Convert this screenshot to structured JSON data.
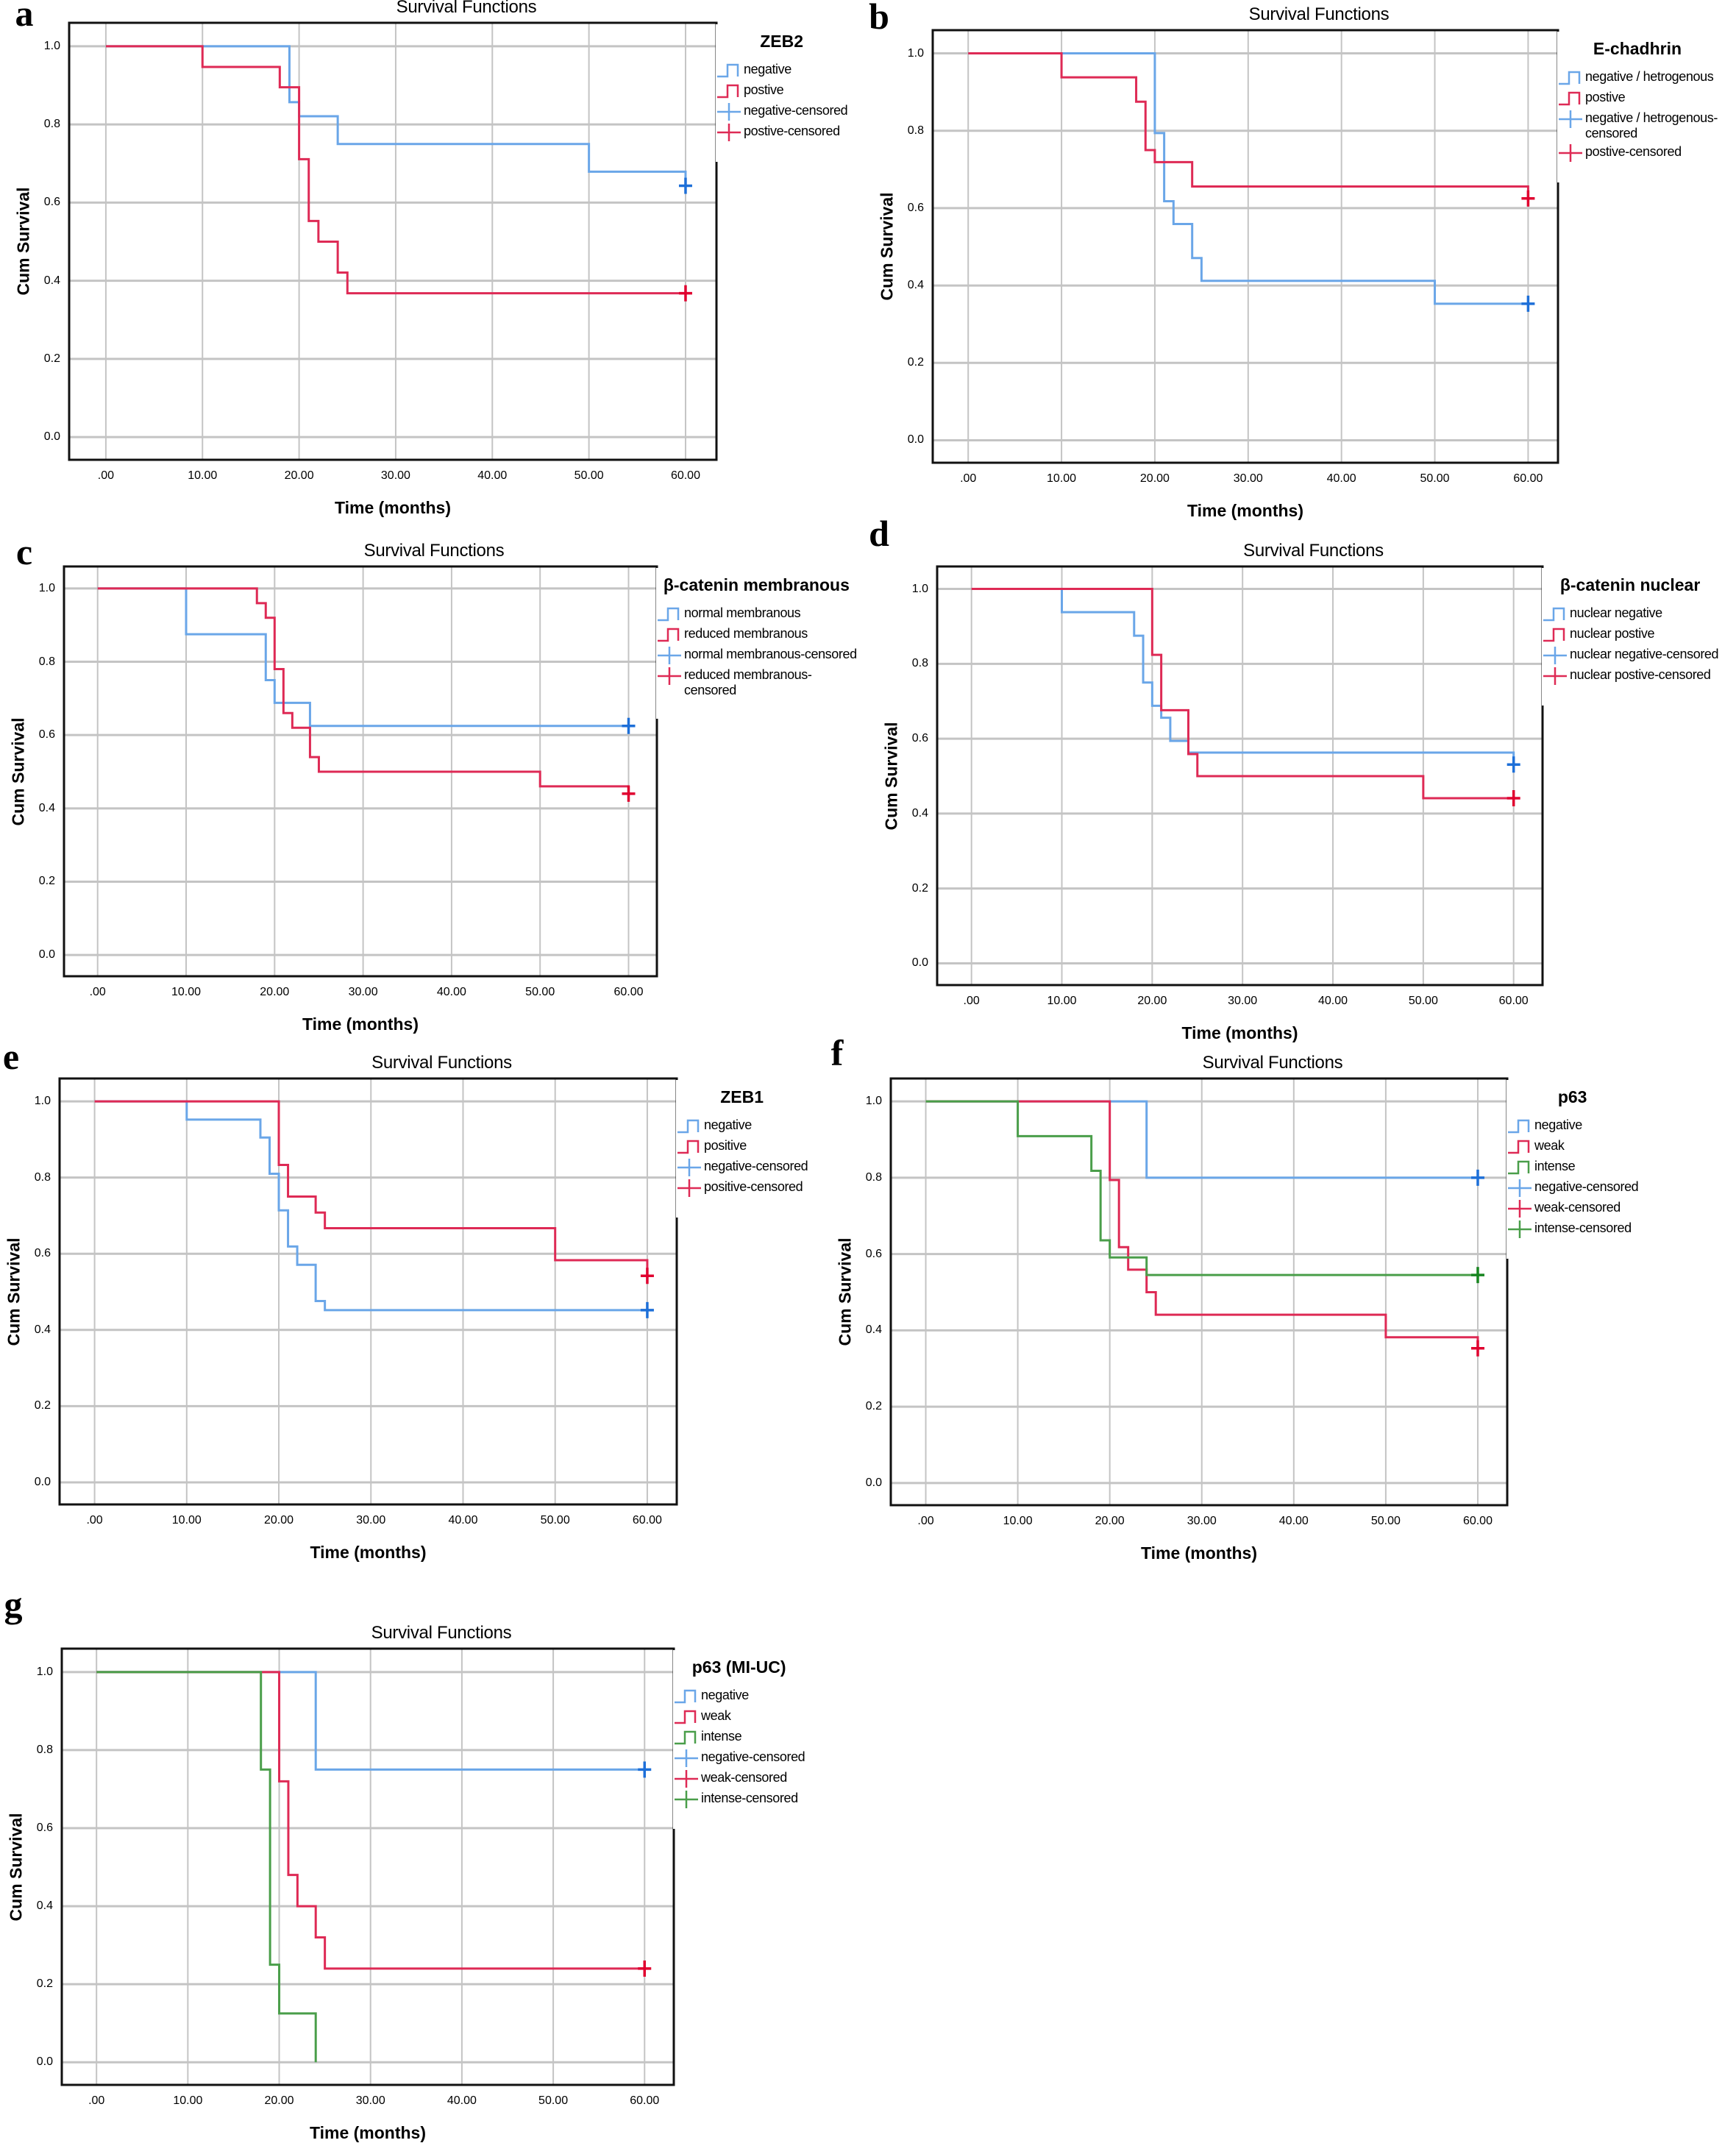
{
  "chart_data": [
    {
      "type": "line",
      "panel": "a",
      "title": "Survival Functions",
      "xlabel": "Time (months)",
      "ylabel": "Cum Survival",
      "xlim": [
        -3.8,
        63.2
      ],
      "ylim": [
        -0.058,
        1.06
      ],
      "grid": true,
      "legend_position": "right",
      "xticks": [
        ".00",
        "10.00",
        "20.00",
        "30.00",
        "40.00",
        "50.00",
        "60.00"
      ],
      "yticks": [
        "0.0",
        "0.2",
        "0.4",
        "0.6",
        "0.8",
        "1.0"
      ],
      "legend_title": "ZEB2",
      "series": [
        {
          "name": "negative",
          "color": "#6aa6e8",
          "censor_color": "#1d6fd8",
          "steps": [
            [
              19,
              0.857
            ],
            [
              20,
              0.821
            ],
            [
              24,
              0.75
            ],
            [
              50,
              0.679
            ],
            [
              60,
              0.643
            ]
          ],
          "end": 60,
          "censored": [
            [
              60,
              0.643
            ]
          ]
        },
        {
          "name": "postive",
          "color": "#de2a55",
          "censor_color": "#e0002f",
          "steps": [
            [
              10,
              0.947
            ],
            [
              18,
              0.895
            ],
            [
              20,
              0.711
            ],
            [
              21,
              0.553
            ],
            [
              22,
              0.5
            ],
            [
              24,
              0.421
            ],
            [
              25,
              0.368
            ]
          ],
          "end": 60,
          "censored": [
            [
              60,
              0.368
            ]
          ]
        }
      ],
      "legend": [
        {
          "label": "negative",
          "color": "#6aa6e8",
          "kind": "line"
        },
        {
          "label": "postive",
          "color": "#de2a55",
          "kind": "line"
        },
        {
          "label": "negative-censored",
          "color": "#6aa6e8",
          "kind": "censored"
        },
        {
          "label": "postive-censored",
          "color": "#de2a55",
          "kind": "censored"
        }
      ]
    },
    {
      "type": "line",
      "panel": "b",
      "title": "Survival Functions",
      "xlabel": "Time (months)",
      "ylabel": "Cum Survival",
      "xlim": [
        -3.8,
        63.2
      ],
      "ylim": [
        -0.058,
        1.06
      ],
      "grid": true,
      "legend_position": "right",
      "xticks": [
        ".00",
        "10.00",
        "20.00",
        "30.00",
        "40.00",
        "50.00",
        "60.00"
      ],
      "yticks": [
        "0.0",
        "0.2",
        "0.4",
        "0.6",
        "0.8",
        "1.0"
      ],
      "legend_title": "E-chadhrin",
      "series": [
        {
          "name": "negative / hetrogenous",
          "color": "#6aa6e8",
          "censor_color": "#1d6fd8",
          "steps": [
            [
              20,
              0.794
            ],
            [
              21,
              0.618
            ],
            [
              22,
              0.559
            ],
            [
              24,
              0.471
            ],
            [
              25,
              0.412
            ],
            [
              50,
              0.353
            ]
          ],
          "end": 60,
          "censored": [
            [
              60,
              0.353
            ]
          ]
        },
        {
          "name": "postive",
          "color": "#de2a55",
          "censor_color": "#e0002f",
          "steps": [
            [
              10,
              0.938
            ],
            [
              18,
              0.875
            ],
            [
              19,
              0.75
            ],
            [
              20,
              0.719
            ],
            [
              24,
              0.656
            ],
            [
              60,
              0.625
            ]
          ],
          "end": 60,
          "censored": [
            [
              60,
              0.625
            ]
          ]
        }
      ],
      "legend": [
        {
          "label": "negative / hetrogenous",
          "color": "#6aa6e8",
          "kind": "line"
        },
        {
          "label": "postive",
          "color": "#de2a55",
          "kind": "line"
        },
        {
          "label": "negative / hetrogenous-\ncensored",
          "color": "#6aa6e8",
          "kind": "censored"
        },
        {
          "label": "postive-censored",
          "color": "#de2a55",
          "kind": "censored"
        }
      ]
    },
    {
      "type": "line",
      "panel": "c",
      "title": "Survival Functions",
      "xlabel": "Time (months)",
      "ylabel": "Cum Survival",
      "xlim": [
        -3.8,
        63.2
      ],
      "ylim": [
        -0.058,
        1.06
      ],
      "grid": true,
      "legend_position": "right",
      "xticks": [
        ".00",
        "10.00",
        "20.00",
        "30.00",
        "40.00",
        "50.00",
        "60.00"
      ],
      "yticks": [
        "0.0",
        "0.2",
        "0.4",
        "0.6",
        "0.8",
        "1.0"
      ],
      "legend_title": "β-catenin membranous",
      "series": [
        {
          "name": "normal membranous",
          "color": "#6aa6e8",
          "censor_color": "#1d6fd8",
          "steps": [
            [
              10,
              0.875
            ],
            [
              19,
              0.75
            ],
            [
              20,
              0.688
            ],
            [
              24,
              0.625
            ]
          ],
          "end": 60,
          "censored": [
            [
              60,
              0.625
            ]
          ]
        },
        {
          "name": "reduced membranous",
          "color": "#de2a55",
          "censor_color": "#e0002f",
          "steps": [
            [
              18,
              0.96
            ],
            [
              19,
              0.92
            ],
            [
              20,
              0.78
            ],
            [
              21,
              0.66
            ],
            [
              22,
              0.62
            ],
            [
              24,
              0.54
            ],
            [
              25,
              0.5
            ],
            [
              50,
              0.46
            ],
            [
              60,
              0.44
            ]
          ],
          "end": 60,
          "censored": [
            [
              60,
              0.44
            ]
          ]
        }
      ],
      "legend": [
        {
          "label": "normal membranous",
          "color": "#6aa6e8",
          "kind": "line"
        },
        {
          "label": "reduced membranous",
          "color": "#de2a55",
          "kind": "line"
        },
        {
          "label": "normal membranous-censored",
          "color": "#6aa6e8",
          "kind": "censored"
        },
        {
          "label": "reduced membranous-\ncensored",
          "color": "#de2a55",
          "kind": "censored"
        }
      ]
    },
    {
      "type": "line",
      "panel": "d",
      "title": "Survival Functions",
      "xlabel": "Time (months)",
      "ylabel": "Cum Survival",
      "xlim": [
        -3.8,
        63.2
      ],
      "ylim": [
        -0.058,
        1.06
      ],
      "grid": true,
      "legend_position": "right",
      "xticks": [
        ".00",
        "10.00",
        "20.00",
        "30.00",
        "40.00",
        "50.00",
        "60.00"
      ],
      "yticks": [
        "0.0",
        "0.2",
        "0.4",
        "0.6",
        "0.8",
        "1.0"
      ],
      "legend_title": "β-catenin nuclear",
      "series": [
        {
          "name": "nuclear negative",
          "color": "#6aa6e8",
          "censor_color": "#1d6fd8",
          "steps": [
            [
              10,
              0.938
            ],
            [
              18,
              0.875
            ],
            [
              19,
              0.75
            ],
            [
              20,
              0.688
            ],
            [
              21,
              0.656
            ],
            [
              22,
              0.594
            ],
            [
              24,
              0.563
            ],
            [
              60,
              0.531
            ]
          ],
          "end": 60,
          "censored": [
            [
              60,
              0.531
            ]
          ]
        },
        {
          "name": "nuclear postive",
          "color": "#de2a55",
          "censor_color": "#e0002f",
          "steps": [
            [
              20,
              0.824
            ],
            [
              21,
              0.676
            ],
            [
              24,
              0.559
            ],
            [
              25,
              0.5
            ],
            [
              50,
              0.441
            ]
          ],
          "end": 60,
          "censored": [
            [
              60,
              0.441
            ]
          ]
        }
      ],
      "legend": [
        {
          "label": "nuclear negative",
          "color": "#6aa6e8",
          "kind": "line"
        },
        {
          "label": "nuclear postive",
          "color": "#de2a55",
          "kind": "line"
        },
        {
          "label": "nuclear negative-censored",
          "color": "#6aa6e8",
          "kind": "censored"
        },
        {
          "label": "nuclear postive-censored",
          "color": "#de2a55",
          "kind": "censored"
        }
      ]
    },
    {
      "type": "line",
      "panel": "e",
      "title": "Survival Functions",
      "xlabel": "Time (months)",
      "ylabel": "Cum Survival",
      "xlim": [
        -3.8,
        63.2
      ],
      "ylim": [
        -0.058,
        1.06
      ],
      "grid": true,
      "legend_position": "right",
      "xticks": [
        ".00",
        "10.00",
        "20.00",
        "30.00",
        "40.00",
        "50.00",
        "60.00"
      ],
      "yticks": [
        "0.0",
        "0.2",
        "0.4",
        "0.6",
        "0.8",
        "1.0"
      ],
      "legend_title": "ZEB1",
      "series": [
        {
          "name": "negative",
          "color": "#6aa6e8",
          "censor_color": "#1d6fd8",
          "steps": [
            [
              10,
              0.952
            ],
            [
              18,
              0.905
            ],
            [
              19,
              0.81
            ],
            [
              20,
              0.714
            ],
            [
              21,
              0.619
            ],
            [
              22,
              0.571
            ],
            [
              24,
              0.476
            ],
            [
              25,
              0.452
            ]
          ],
          "end": 60,
          "censored": [
            [
              60,
              0.452
            ]
          ]
        },
        {
          "name": "positive",
          "color": "#de2a55",
          "censor_color": "#e0002f",
          "steps": [
            [
              20,
              0.833
            ],
            [
              21,
              0.75
            ],
            [
              24,
              0.708
            ],
            [
              25,
              0.667
            ],
            [
              50,
              0.583
            ],
            [
              60,
              0.542
            ]
          ],
          "end": 60,
          "censored": [
            [
              60,
              0.542
            ]
          ]
        }
      ],
      "legend": [
        {
          "label": "negative",
          "color": "#6aa6e8",
          "kind": "line"
        },
        {
          "label": "positive",
          "color": "#de2a55",
          "kind": "line"
        },
        {
          "label": "negative-censored",
          "color": "#6aa6e8",
          "kind": "censored"
        },
        {
          "label": "positive-censored",
          "color": "#de2a55",
          "kind": "censored"
        }
      ]
    },
    {
      "type": "line",
      "panel": "f",
      "title": "Survival Functions",
      "xlabel": "Time (months)",
      "ylabel": "Cum Survival",
      "xlim": [
        -3.8,
        63.2
      ],
      "ylim": [
        -0.058,
        1.06
      ],
      "grid": true,
      "legend_position": "right",
      "xticks": [
        ".00",
        "10.00",
        "20.00",
        "30.00",
        "40.00",
        "50.00",
        "60.00"
      ],
      "yticks": [
        "0.0",
        "0.2",
        "0.4",
        "0.6",
        "0.8",
        "1.0"
      ],
      "legend_title": "p63",
      "series": [
        {
          "name": "negative",
          "color": "#6aa6e8",
          "censor_color": "#1d6fd8",
          "steps": [
            [
              24,
              0.8
            ]
          ],
          "end": 60,
          "censored": [
            [
              60,
              0.8
            ]
          ]
        },
        {
          "name": "weak",
          "color": "#de2a55",
          "censor_color": "#e0002f",
          "steps": [
            [
              20,
              0.794
            ],
            [
              21,
              0.618
            ],
            [
              22,
              0.559
            ],
            [
              24,
              0.5
            ],
            [
              25,
              0.441
            ],
            [
              50,
              0.382
            ],
            [
              60,
              0.353
            ]
          ],
          "end": 60,
          "censored": [
            [
              60,
              0.353
            ]
          ]
        },
        {
          "name": "intense",
          "color": "#4a9e4a",
          "censor_color": "#17851f",
          "steps": [
            [
              10,
              0.909
            ],
            [
              18,
              0.818
            ],
            [
              19,
              0.636
            ],
            [
              20,
              0.591
            ],
            [
              24,
              0.545
            ]
          ],
          "end": 60,
          "censored": [
            [
              60,
              0.545
            ]
          ]
        }
      ],
      "legend": [
        {
          "label": "negative",
          "color": "#6aa6e8",
          "kind": "line"
        },
        {
          "label": "weak",
          "color": "#de2a55",
          "kind": "line"
        },
        {
          "label": "intense",
          "color": "#4a9e4a",
          "kind": "line"
        },
        {
          "label": "negative-censored",
          "color": "#6aa6e8",
          "kind": "censored"
        },
        {
          "label": "weak-censored",
          "color": "#de2a55",
          "kind": "censored"
        },
        {
          "label": "intense-censored",
          "color": "#4a9e4a",
          "kind": "censored"
        }
      ]
    },
    {
      "type": "line",
      "panel": "g",
      "title": "Survival Functions",
      "xlabel": "Time (months)",
      "ylabel": "Cum Survival",
      "xlim": [
        -3.8,
        63.2
      ],
      "ylim": [
        -0.058,
        1.06
      ],
      "grid": true,
      "legend_position": "right",
      "xticks": [
        ".00",
        "10.00",
        "20.00",
        "30.00",
        "40.00",
        "50.00",
        "60.00"
      ],
      "yticks": [
        "0.0",
        "0.2",
        "0.4",
        "0.6",
        "0.8",
        "1.0"
      ],
      "legend_title": "p63 (MI-UC)",
      "series": [
        {
          "name": "negative",
          "color": "#6aa6e8",
          "censor_color": "#1d6fd8",
          "steps": [
            [
              24,
              0.75
            ]
          ],
          "end": 60,
          "censored": [
            [
              60,
              0.75
            ]
          ]
        },
        {
          "name": "weak",
          "color": "#de2a55",
          "censor_color": "#e0002f",
          "steps": [
            [
              20,
              0.72
            ],
            [
              21,
              0.48
            ],
            [
              22,
              0.4
            ],
            [
              24,
              0.32
            ],
            [
              25,
              0.24
            ]
          ],
          "end": 60,
          "censored": [
            [
              60,
              0.24
            ]
          ]
        },
        {
          "name": "intense",
          "color": "#4a9e4a",
          "censor_color": "#17851f",
          "steps": [
            [
              18,
              0.75
            ],
            [
              19,
              0.25
            ],
            [
              20,
              0.125
            ],
            [
              24,
              0
            ]
          ],
          "end": 24,
          "censored": []
        }
      ],
      "legend": [
        {
          "label": "negative",
          "color": "#6aa6e8",
          "kind": "line"
        },
        {
          "label": "weak",
          "color": "#de2a55",
          "kind": "line"
        },
        {
          "label": "intense",
          "color": "#4a9e4a",
          "kind": "line"
        },
        {
          "label": "negative-censored",
          "color": "#6aa6e8",
          "kind": "censored"
        },
        {
          "label": "weak-censored",
          "color": "#de2a55",
          "kind": "censored"
        },
        {
          "label": "intense-censored",
          "color": "#4a9e4a",
          "kind": "censored"
        }
      ]
    }
  ]
}
